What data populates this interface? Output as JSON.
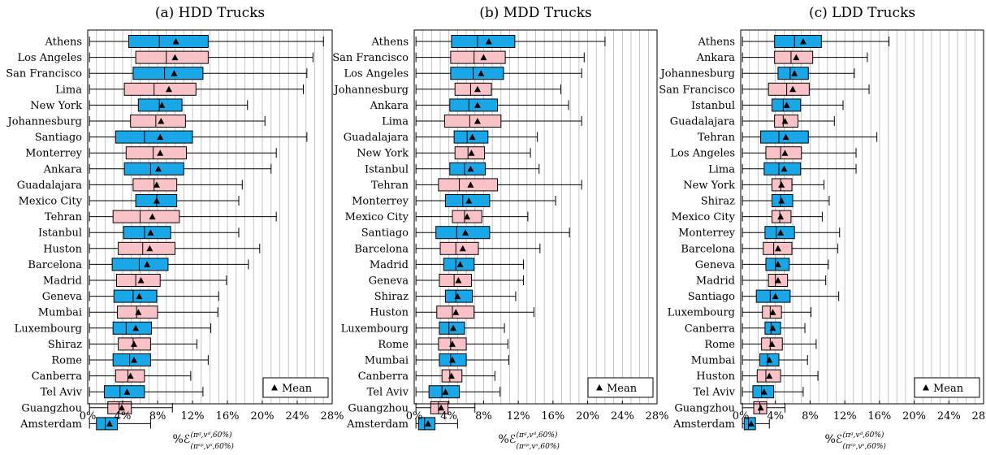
{
  "legend_label": "Mean",
  "xlabel_parts": {
    "base": "%ℰ",
    "sup": "(π",
    "sub": "(π"
  },
  "colors": {
    "blue": "#1aa7e8",
    "pink": "#f9c2c7",
    "grid": "#b5b5b5"
  },
  "chart_data": [
    {
      "type": "boxplot",
      "title": "(a) HDD Trucks",
      "xlabel": "%ℰ_{(π^{sp},v^{s},60%)}^{(π^{g},v^{d},60%)}",
      "xlim": [
        0,
        28
      ],
      "xticks": [
        "0%",
        "4%",
        "8%",
        "12%",
        "16%",
        "20%",
        "24%",
        "28%"
      ],
      "grid": "vertical every 1%",
      "legend": {
        "entries": [
          "Mean"
        ],
        "placement": "bottom-right"
      },
      "boxes": [
        {
          "city": "Athens",
          "color": "blue",
          "min": 0.2,
          "q1": 4.7,
          "median": 8.2,
          "q3": 13.8,
          "max": 27.0,
          "mean": 10.1
        },
        {
          "city": "Los Angeles",
          "color": "pink",
          "min": 0.2,
          "q1": 5.5,
          "median": 9.0,
          "q3": 13.8,
          "max": 25.8,
          "mean": 10.0
        },
        {
          "city": "San Francisco",
          "color": "blue",
          "min": 0.2,
          "q1": 5.2,
          "median": 8.8,
          "q3": 13.2,
          "max": 25.1,
          "mean": 9.9
        },
        {
          "city": "Lima",
          "color": "pink",
          "min": 0.2,
          "q1": 4.2,
          "median": 7.6,
          "q3": 12.4,
          "max": 24.7,
          "mean": 9.3
        },
        {
          "city": "New York",
          "color": "blue",
          "min": 0.2,
          "q1": 5.8,
          "median": 8.2,
          "q3": 10.8,
          "max": 18.3,
          "mean": 8.5
        },
        {
          "city": "Johannesburg",
          "color": "pink",
          "min": 0.2,
          "q1": 4.9,
          "median": 7.8,
          "q3": 11.2,
          "max": 20.3,
          "mean": 8.4
        },
        {
          "city": "Santiago",
          "color": "blue",
          "min": 0.2,
          "q1": 3.2,
          "median": 6.5,
          "q3": 12.0,
          "max": 25.1,
          "mean": 8.3
        },
        {
          "city": "Monterrey",
          "color": "pink",
          "min": 0.2,
          "q1": 4.4,
          "median": 7.5,
          "q3": 11.3,
          "max": 21.6,
          "mean": 8.3
        },
        {
          "city": "Ankara",
          "color": "blue",
          "min": 0.2,
          "q1": 4.2,
          "median": 7.2,
          "q3": 11.0,
          "max": 21.0,
          "mean": 8.1
        },
        {
          "city": "Guadalajara",
          "color": "pink",
          "min": 0.2,
          "q1": 5.2,
          "median": 7.6,
          "q3": 10.2,
          "max": 17.7,
          "mean": 7.9
        },
        {
          "city": "Mexico City",
          "color": "blue",
          "min": 0.2,
          "q1": 5.5,
          "median": 7.9,
          "q3": 10.2,
          "max": 17.3,
          "mean": 7.9
        },
        {
          "city": "Tehran",
          "color": "pink",
          "min": 0.2,
          "q1": 2.9,
          "median": 6.0,
          "q3": 10.5,
          "max": 21.6,
          "mean": 7.4
        },
        {
          "city": "Istanbul",
          "color": "blue",
          "min": 0.2,
          "q1": 4.1,
          "median": 6.5,
          "q3": 9.5,
          "max": 17.3,
          "mean": 7.2
        },
        {
          "city": "Huston",
          "color": "pink",
          "min": 0.2,
          "q1": 3.5,
          "median": 6.3,
          "q3": 10.0,
          "max": 19.7,
          "mean": 7.1
        },
        {
          "city": "Barcelona",
          "color": "blue",
          "min": 0.2,
          "q1": 2.8,
          "median": 5.9,
          "q3": 9.2,
          "max": 18.4,
          "mean": 6.8
        },
        {
          "city": "Madrid",
          "color": "pink",
          "min": 0.2,
          "q1": 3.3,
          "median": 5.5,
          "q3": 8.3,
          "max": 15.9,
          "mean": 6.1
        },
        {
          "city": "Geneva",
          "color": "blue",
          "min": 0.2,
          "q1": 3.0,
          "median": 5.2,
          "q3": 7.9,
          "max": 15.0,
          "mean": 5.9
        },
        {
          "city": "Mumbai",
          "color": "pink",
          "min": 0.2,
          "q1": 3.4,
          "median": 5.6,
          "q3": 8.0,
          "max": 14.9,
          "mean": 5.8
        },
        {
          "city": "Luxembourg",
          "color": "blue",
          "min": 0.2,
          "q1": 2.9,
          "median": 4.4,
          "q3": 7.3,
          "max": 14.1,
          "mean": 5.5
        },
        {
          "city": "Shiraz",
          "color": "pink",
          "min": 0.2,
          "q1": 3.5,
          "median": 5.2,
          "q3": 7.2,
          "max": 12.5,
          "mean": 5.3
        },
        {
          "city": "Rome",
          "color": "blue",
          "min": 0.2,
          "q1": 2.9,
          "median": 4.8,
          "q3": 7.2,
          "max": 13.8,
          "mean": 5.3
        },
        {
          "city": "Canberra",
          "color": "pink",
          "min": 0.2,
          "q1": 3.2,
          "median": 4.6,
          "q3": 6.5,
          "max": 11.8,
          "mean": 4.9
        },
        {
          "city": "Tel Aviv",
          "color": "blue",
          "min": 0.2,
          "q1": 1.9,
          "median": 3.7,
          "q3": 6.5,
          "max": 13.2,
          "mean": 4.5
        },
        {
          "city": "Guangzhou",
          "color": "pink",
          "min": 0.2,
          "q1": 2.3,
          "median": 3.6,
          "q3": 5.0,
          "max": 9.7,
          "mean": 3.9
        },
        {
          "city": "Amsterdam",
          "color": "blue",
          "min": 0.2,
          "q1": 1.0,
          "median": 2.0,
          "q3": 3.4,
          "max": 7.2,
          "mean": 2.5
        }
      ]
    },
    {
      "type": "boxplot",
      "title": "(b) MDD Trucks",
      "xlabel": "%ℰ_{(π^{sp},v^{s},60%)}^{(π^{g},v^{d},60%)}",
      "xlim": [
        0,
        28
      ],
      "xticks": [
        "0%",
        "4%",
        "8%",
        "12%",
        "16%",
        "20%",
        "24%",
        "28%"
      ],
      "grid": "vertical every 1%",
      "legend": {
        "entries": [
          "Mean"
        ],
        "placement": "bottom-right"
      },
      "boxes": [
        {
          "city": "Athens",
          "color": "blue",
          "min": 0.2,
          "q1": 4.3,
          "median": 7.3,
          "q3": 11.6,
          "max": 22.0,
          "mean": 8.6
        },
        {
          "city": "San Francisco",
          "color": "pink",
          "min": 0.2,
          "q1": 4.2,
          "median": 6.9,
          "q3": 10.5,
          "max": 19.6,
          "mean": 8.0
        },
        {
          "city": "Los Angeles",
          "color": "blue",
          "min": 0.2,
          "q1": 4.2,
          "median": 6.8,
          "q3": 10.3,
          "max": 19.3,
          "mean": 7.7
        },
        {
          "city": "Johannesburg",
          "color": "pink",
          "min": 0.2,
          "q1": 4.7,
          "median": 6.5,
          "q3": 8.9,
          "max": 16.9,
          "mean": 7.3
        },
        {
          "city": "Ankara",
          "color": "blue",
          "min": 0.2,
          "q1": 4.1,
          "median": 6.3,
          "q3": 9.6,
          "max": 17.8,
          "mean": 7.3
        },
        {
          "city": "Lima",
          "color": "pink",
          "min": 0.2,
          "q1": 3.5,
          "median": 6.4,
          "q3": 10.0,
          "max": 19.3,
          "mean": 7.3
        },
        {
          "city": "Guadalajara",
          "color": "blue",
          "min": 0.2,
          "q1": 4.6,
          "median": 6.1,
          "q3": 8.5,
          "max": 14.2,
          "mean": 6.7
        },
        {
          "city": "New York",
          "color": "pink",
          "min": 0.2,
          "q1": 4.7,
          "median": 6.2,
          "q3": 8.1,
          "max": 13.4,
          "mean": 6.6
        },
        {
          "city": "Istanbul",
          "color": "blue",
          "min": 0.2,
          "q1": 4.1,
          "median": 5.8,
          "q3": 8.2,
          "max": 14.4,
          "mean": 6.5
        },
        {
          "city": "Tehran",
          "color": "pink",
          "min": 0.2,
          "q1": 2.8,
          "median": 5.2,
          "q3": 9.6,
          "max": 19.3,
          "mean": 6.5
        },
        {
          "city": "Monterrey",
          "color": "blue",
          "min": 0.2,
          "q1": 3.6,
          "median": 5.6,
          "q3": 8.7,
          "max": 16.3,
          "mean": 6.3
        },
        {
          "city": "Mexico City",
          "color": "pink",
          "min": 0.2,
          "q1": 4.4,
          "median": 5.8,
          "q3": 7.8,
          "max": 13.1,
          "mean": 6.1
        },
        {
          "city": "Santiago",
          "color": "blue",
          "min": 0.2,
          "q1": 2.5,
          "median": 4.9,
          "q3": 8.7,
          "max": 17.9,
          "mean": 5.9
        },
        {
          "city": "Barcelona",
          "color": "pink",
          "min": 0.2,
          "q1": 3.0,
          "median": 4.8,
          "q3": 7.4,
          "max": 14.5,
          "mean": 5.6
        },
        {
          "city": "Madrid",
          "color": "blue",
          "min": 0.2,
          "q1": 3.4,
          "median": 4.8,
          "q3": 6.9,
          "max": 12.6,
          "mean": 5.3
        },
        {
          "city": "Geneva",
          "color": "pink",
          "min": 0.2,
          "q1": 2.9,
          "median": 4.6,
          "q3": 6.6,
          "max": 12.6,
          "mean": 5.1
        },
        {
          "city": "Shiraz",
          "color": "blue",
          "min": 0.2,
          "q1": 3.6,
          "median": 4.8,
          "q3": 6.7,
          "max": 11.7,
          "mean": 5.0
        },
        {
          "city": "Huston",
          "color": "pink",
          "min": 0.2,
          "q1": 2.6,
          "median": 4.4,
          "q3": 6.9,
          "max": 13.8,
          "mean": 4.8
        },
        {
          "city": "Luxembourg",
          "color": "blue",
          "min": 0.2,
          "q1": 2.9,
          "median": 4.0,
          "q3": 5.8,
          "max": 10.4,
          "mean": 4.5
        },
        {
          "city": "Rome",
          "color": "pink",
          "min": 0.2,
          "q1": 2.8,
          "median": 4.2,
          "q3": 6.0,
          "max": 10.8,
          "mean": 4.4
        },
        {
          "city": "Mumbai",
          "color": "blue",
          "min": 0.2,
          "q1": 2.9,
          "median": 4.2,
          "q3": 6.0,
          "max": 10.9,
          "mean": 4.4
        },
        {
          "city": "Canberra",
          "color": "pink",
          "min": 0.2,
          "q1": 3.2,
          "median": 4.1,
          "q3": 5.5,
          "max": 9.3,
          "mean": 4.3
        },
        {
          "city": "Tel Aviv",
          "color": "blue",
          "min": 0.2,
          "q1": 1.7,
          "median": 3.2,
          "q3": 5.2,
          "max": 9.9,
          "mean": 3.6
        },
        {
          "city": "Guangzhou",
          "color": "pink",
          "min": 0.2,
          "q1": 1.9,
          "median": 2.8,
          "q3": 3.9,
          "max": 7.0,
          "mean": 3.1
        },
        {
          "city": "Amsterdam",
          "color": "blue",
          "min": 0.2,
          "q1": 0.5,
          "median": 1.2,
          "q3": 2.4,
          "max": 5.0,
          "mean": 1.6
        }
      ]
    },
    {
      "type": "boxplot",
      "title": "(c) LDD Trucks",
      "xlabel": "%ℰ_{(π^{sp},v^{s},60%)}^{(π^{g},v^{d},60%)}",
      "xlim": [
        0,
        28
      ],
      "xticks": [
        "0%",
        "4%",
        "8%",
        "12%",
        "16%",
        "20%",
        "24%",
        "28%"
      ],
      "grid": "vertical every 1%",
      "legend": {
        "entries": [
          "Mean"
        ],
        "placement": "bottom-right"
      },
      "boxes": [
        {
          "city": "Athens",
          "color": "blue",
          "min": 0.2,
          "q1": 3.9,
          "median": 6.2,
          "q3": 9.3,
          "max": 17.1,
          "mean": 7.2
        },
        {
          "city": "Ankara",
          "color": "pink",
          "min": 0.2,
          "q1": 3.9,
          "median": 5.8,
          "q3": 8.3,
          "max": 14.6,
          "mean": 6.4
        },
        {
          "city": "Johannesburg",
          "color": "blue",
          "min": 0.2,
          "q1": 4.3,
          "median": 5.7,
          "q3": 7.8,
          "max": 13.1,
          "mean": 6.2
        },
        {
          "city": "San Francisco",
          "color": "pink",
          "min": 0.2,
          "q1": 3.2,
          "median": 5.3,
          "q3": 7.9,
          "max": 14.8,
          "mean": 6.0
        },
        {
          "city": "Istanbul",
          "color": "blue",
          "min": 0.2,
          "q1": 3.6,
          "median": 4.9,
          "q3": 6.9,
          "max": 11.8,
          "mean": 5.3
        },
        {
          "city": "Guadalajara",
          "color": "pink",
          "min": 0.2,
          "q1": 3.9,
          "median": 4.9,
          "q3": 6.6,
          "max": 10.8,
          "mean": 5.1
        },
        {
          "city": "Tehran",
          "color": "blue",
          "min": 0.2,
          "q1": 2.3,
          "median": 4.4,
          "q3": 7.8,
          "max": 15.7,
          "mean": 5.2
        },
        {
          "city": "Los Angeles",
          "color": "pink",
          "min": 0.2,
          "q1": 2.9,
          "median": 4.6,
          "q3": 7.0,
          "max": 13.3,
          "mean": 5.1
        },
        {
          "city": "Lima",
          "color": "blue",
          "min": 0.2,
          "q1": 2.7,
          "median": 4.4,
          "q3": 6.9,
          "max": 13.3,
          "mean": 5.0
        },
        {
          "city": "New York",
          "color": "pink",
          "min": 0.2,
          "q1": 3.6,
          "median": 4.6,
          "q3": 5.9,
          "max": 9.6,
          "mean": 4.7
        },
        {
          "city": "Shiraz",
          "color": "blue",
          "min": 0.2,
          "q1": 3.6,
          "median": 4.6,
          "q3": 6.0,
          "max": 10.2,
          "mean": 4.7
        },
        {
          "city": "Mexico City",
          "color": "pink",
          "min": 0.2,
          "q1": 3.6,
          "median": 4.5,
          "q3": 5.8,
          "max": 9.4,
          "mean": 4.6
        },
        {
          "city": "Monterrey",
          "color": "blue",
          "min": 0.2,
          "q1": 2.8,
          "median": 4.1,
          "q3": 6.2,
          "max": 11.4,
          "mean": 4.6
        },
        {
          "city": "Barcelona",
          "color": "pink",
          "min": 0.2,
          "q1": 2.6,
          "median": 3.8,
          "q3": 5.9,
          "max": 11.2,
          "mean": 4.3
        },
        {
          "city": "Geneva",
          "color": "blue",
          "min": 0.2,
          "q1": 2.9,
          "median": 4.0,
          "q3": 5.6,
          "max": 10.1,
          "mean": 4.3
        },
        {
          "city": "Madrid",
          "color": "pink",
          "min": 0.2,
          "q1": 3.2,
          "median": 4.0,
          "q3": 5.4,
          "max": 9.8,
          "mean": 4.3
        },
        {
          "city": "Santiago",
          "color": "blue",
          "min": 0.2,
          "q1": 1.8,
          "median": 3.4,
          "q3": 5.7,
          "max": 11.3,
          "mean": 4.0
        },
        {
          "city": "Luxembourg",
          "color": "pink",
          "min": 0.2,
          "q1": 2.5,
          "median": 3.4,
          "q3": 4.7,
          "max": 8.1,
          "mean": 3.7
        },
        {
          "city": "Canberra",
          "color": "blue",
          "min": 0.2,
          "q1": 2.8,
          "median": 3.5,
          "q3": 4.6,
          "max": 7.4,
          "mean": 3.7
        },
        {
          "city": "Rome",
          "color": "pink",
          "min": 0.2,
          "q1": 2.4,
          "median": 3.4,
          "q3": 4.8,
          "max": 8.7,
          "mean": 3.6
        },
        {
          "city": "Mumbai",
          "color": "blue",
          "min": 0.2,
          "q1": 2.2,
          "median": 3.1,
          "q3": 4.4,
          "max": 7.7,
          "mean": 3.3
        },
        {
          "city": "Huston",
          "color": "pink",
          "min": 0.2,
          "q1": 1.9,
          "median": 2.9,
          "q3": 4.6,
          "max": 8.9,
          "mean": 3.3
        },
        {
          "city": "Tel Aviv",
          "color": "blue",
          "min": 0.2,
          "q1": 1.4,
          "median": 2.4,
          "q3": 3.8,
          "max": 7.2,
          "mean": 2.7
        },
        {
          "city": "Guangzhou",
          "color": "pink",
          "min": 0.2,
          "q1": 1.5,
          "median": 2.2,
          "q3": 3.0,
          "max": 5.1,
          "mean": 2.3
        },
        {
          "city": "Amsterdam",
          "color": "blue",
          "min": 0.2,
          "q1": 0.4,
          "median": 0.9,
          "q3": 1.7,
          "max": 3.3,
          "mean": 1.2
        }
      ]
    }
  ]
}
